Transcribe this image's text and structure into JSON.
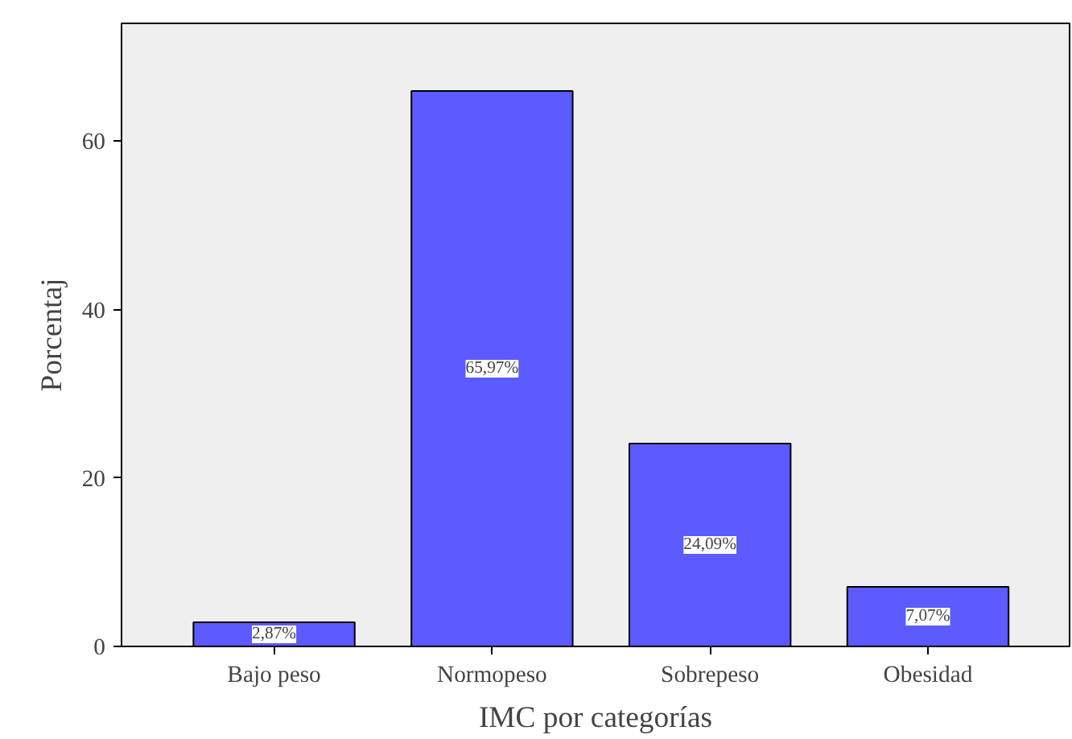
{
  "chart_data": {
    "type": "bar",
    "xlabel": "IMC por categorías",
    "ylabel": "Porcentaj",
    "categories": [
      "Bajo peso",
      "Normopeso",
      "Sobrepeso",
      "Obesidad"
    ],
    "values": [
      2.87,
      65.97,
      24.09,
      7.07
    ],
    "value_labels": [
      "2,87%",
      "65,97%",
      "24,09%",
      "7,07%"
    ],
    "color": "#5b5bff",
    "ylim": [
      0,
      74
    ],
    "yticks": [
      0,
      20,
      40,
      60
    ],
    "grid": false
  }
}
